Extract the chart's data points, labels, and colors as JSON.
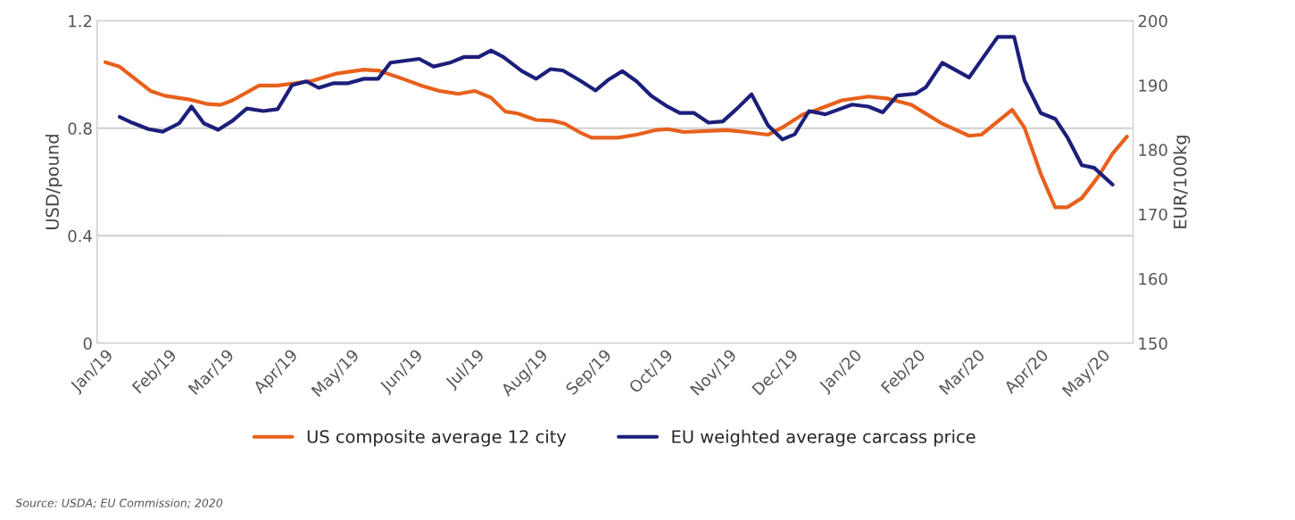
{
  "chart_data": {
    "type": "line",
    "ylabel": "USD/pound",
    "y2label": "EUR/100kg",
    "xlim": [
      "2018-12-28",
      "2020-05-16"
    ],
    "ylim": [
      0,
      1.2
    ],
    "yticks": [
      0,
      0.4,
      0.8,
      1.2
    ],
    "y2lim": [
      150,
      200
    ],
    "y2ticks": [
      150,
      160,
      170,
      180,
      190,
      200
    ],
    "xticks": [
      {
        "value": "2019-01-01",
        "label": "Jan/19"
      },
      {
        "value": "2019-02-01",
        "label": "Feb/19"
      },
      {
        "value": "2019-03-01",
        "label": "Mar/19"
      },
      {
        "value": "2019-04-01",
        "label": "Apr/19"
      },
      {
        "value": "2019-05-01",
        "label": "May/19"
      },
      {
        "value": "2019-06-01",
        "label": "Jun/19"
      },
      {
        "value": "2019-07-01",
        "label": "Jul/19"
      },
      {
        "value": "2019-08-01",
        "label": "Aug/19"
      },
      {
        "value": "2019-09-01",
        "label": "Sep/19"
      },
      {
        "value": "2019-10-01",
        "label": "Oct/19"
      },
      {
        "value": "2019-11-01",
        "label": "Nov/19"
      },
      {
        "value": "2019-12-01",
        "label": "Dec/19"
      },
      {
        "value": "2020-01-01",
        "label": "Jan/20"
      },
      {
        "value": "2020-02-01",
        "label": "Feb/20"
      },
      {
        "value": "2020-03-01",
        "label": "Mar/20"
      },
      {
        "value": "2020-04-01",
        "label": "Apr/20"
      },
      {
        "value": "2020-05-01",
        "label": "May/20"
      }
    ],
    "grid": "y",
    "legend": "bottom",
    "annotations": [
      "Source: USDA; EU Commission; 2020"
    ],
    "series": [
      {
        "name": "US composite average 12 city",
        "color": "#e8601c",
        "x": [
          "2019-01-01",
          "2019-01-08",
          "2019-01-23",
          "2019-01-30",
          "2019-02-11",
          "2019-02-20",
          "2019-02-26",
          "2019-03-04",
          "2019-03-17",
          "2019-03-26",
          "2019-04-02",
          "2019-04-12",
          "2019-04-24",
          "2019-05-07",
          "2019-05-14",
          "2019-05-26",
          "2019-06-05",
          "2019-06-13",
          "2019-06-22",
          "2019-06-30",
          "2019-07-08",
          "2019-07-15",
          "2019-07-21",
          "2019-07-30",
          "2019-08-07",
          "2019-08-13",
          "2019-08-20",
          "2019-08-26",
          "2019-09-08",
          "2019-09-17",
          "2019-09-26",
          "2019-10-02",
          "2019-10-10",
          "2019-10-31",
          "2019-11-09",
          "2019-11-20",
          "2019-11-27",
          "2019-12-07",
          "2019-12-14",
          "2019-12-26",
          "2020-01-08",
          "2020-01-17",
          "2020-01-29",
          "2020-02-13",
          "2020-02-26",
          "2020-03-03",
          "2020-03-18",
          "2020-03-24",
          "2020-04-01",
          "2020-04-08",
          "2020-04-14",
          "2020-04-21",
          "2020-04-29",
          "2020-05-06",
          "2020-05-13"
        ],
        "values": [
          1.046,
          1.029,
          0.939,
          0.921,
          0.907,
          0.89,
          0.887,
          0.904,
          0.959,
          0.959,
          0.966,
          0.977,
          1.004,
          1.018,
          1.015,
          0.984,
          0.956,
          0.939,
          0.928,
          0.939,
          0.914,
          0.862,
          0.855,
          0.831,
          0.828,
          0.817,
          0.786,
          0.765,
          0.765,
          0.776,
          0.793,
          0.797,
          0.786,
          0.793,
          0.786,
          0.776,
          0.803,
          0.852,
          0.869,
          0.904,
          0.918,
          0.911,
          0.887,
          0.817,
          0.772,
          0.776,
          0.869,
          0.803,
          0.63,
          0.506,
          0.506,
          0.54,
          0.62,
          0.706,
          0.769
        ]
      },
      {
        "name": "EU weighted average carcass price",
        "color": "#1c1f7a",
        "axis": "y2",
        "x": [
          "2019-01-08",
          "2019-01-14",
          "2019-01-22",
          "2019-01-29",
          "2019-02-06",
          "2019-02-12",
          "2019-02-18",
          "2019-02-25",
          "2019-03-04",
          "2019-03-11",
          "2019-03-19",
          "2019-03-26",
          "2019-04-02",
          "2019-04-09",
          "2019-04-15",
          "2019-04-22",
          "2019-04-29",
          "2019-05-07",
          "2019-05-14",
          "2019-05-20",
          "2019-06-03",
          "2019-06-10",
          "2019-06-18",
          "2019-06-25",
          "2019-07-02",
          "2019-07-08",
          "2019-07-14",
          "2019-07-23",
          "2019-07-30",
          "2019-08-06",
          "2019-08-12",
          "2019-08-20",
          "2019-08-28",
          "2019-09-03",
          "2019-09-10",
          "2019-09-17",
          "2019-09-24",
          "2019-10-02",
          "2019-10-08",
          "2019-10-15",
          "2019-10-22",
          "2019-10-29",
          "2019-11-05",
          "2019-11-12",
          "2019-11-20",
          "2019-11-27",
          "2019-12-03",
          "2019-12-10",
          "2019-12-18",
          "2019-12-31",
          "2020-01-08",
          "2020-01-15",
          "2020-01-22",
          "2020-01-31",
          "2020-02-05",
          "2020-02-13",
          "2020-02-26",
          "2020-03-03",
          "2020-03-11",
          "2020-03-19",
          "2020-03-24",
          "2020-04-01",
          "2020-04-08",
          "2020-04-14",
          "2020-04-21",
          "2020-04-27",
          "2020-05-06"
        ],
        "values": [
          185.1,
          184.2,
          183.2,
          182.8,
          184.1,
          186.7,
          184.1,
          183.1,
          184.5,
          186.4,
          186.0,
          186.3,
          190.0,
          190.6,
          189.6,
          190.3,
          190.3,
          191.0,
          191.0,
          193.5,
          194.1,
          192.9,
          193.5,
          194.4,
          194.4,
          195.4,
          194.4,
          192.2,
          191.0,
          192.5,
          192.3,
          190.8,
          189.2,
          190.8,
          192.2,
          190.6,
          188.4,
          186.7,
          185.7,
          185.7,
          184.2,
          184.4,
          186.4,
          188.6,
          183.8,
          181.6,
          182.4,
          186.0,
          185.5,
          187.0,
          186.7,
          185.8,
          188.4,
          188.7,
          189.7,
          193.5,
          191.2,
          193.9,
          197.5,
          197.5,
          190.8,
          185.7,
          184.8,
          181.9,
          177.6,
          177.2,
          174.6
        ]
      }
    ]
  }
}
